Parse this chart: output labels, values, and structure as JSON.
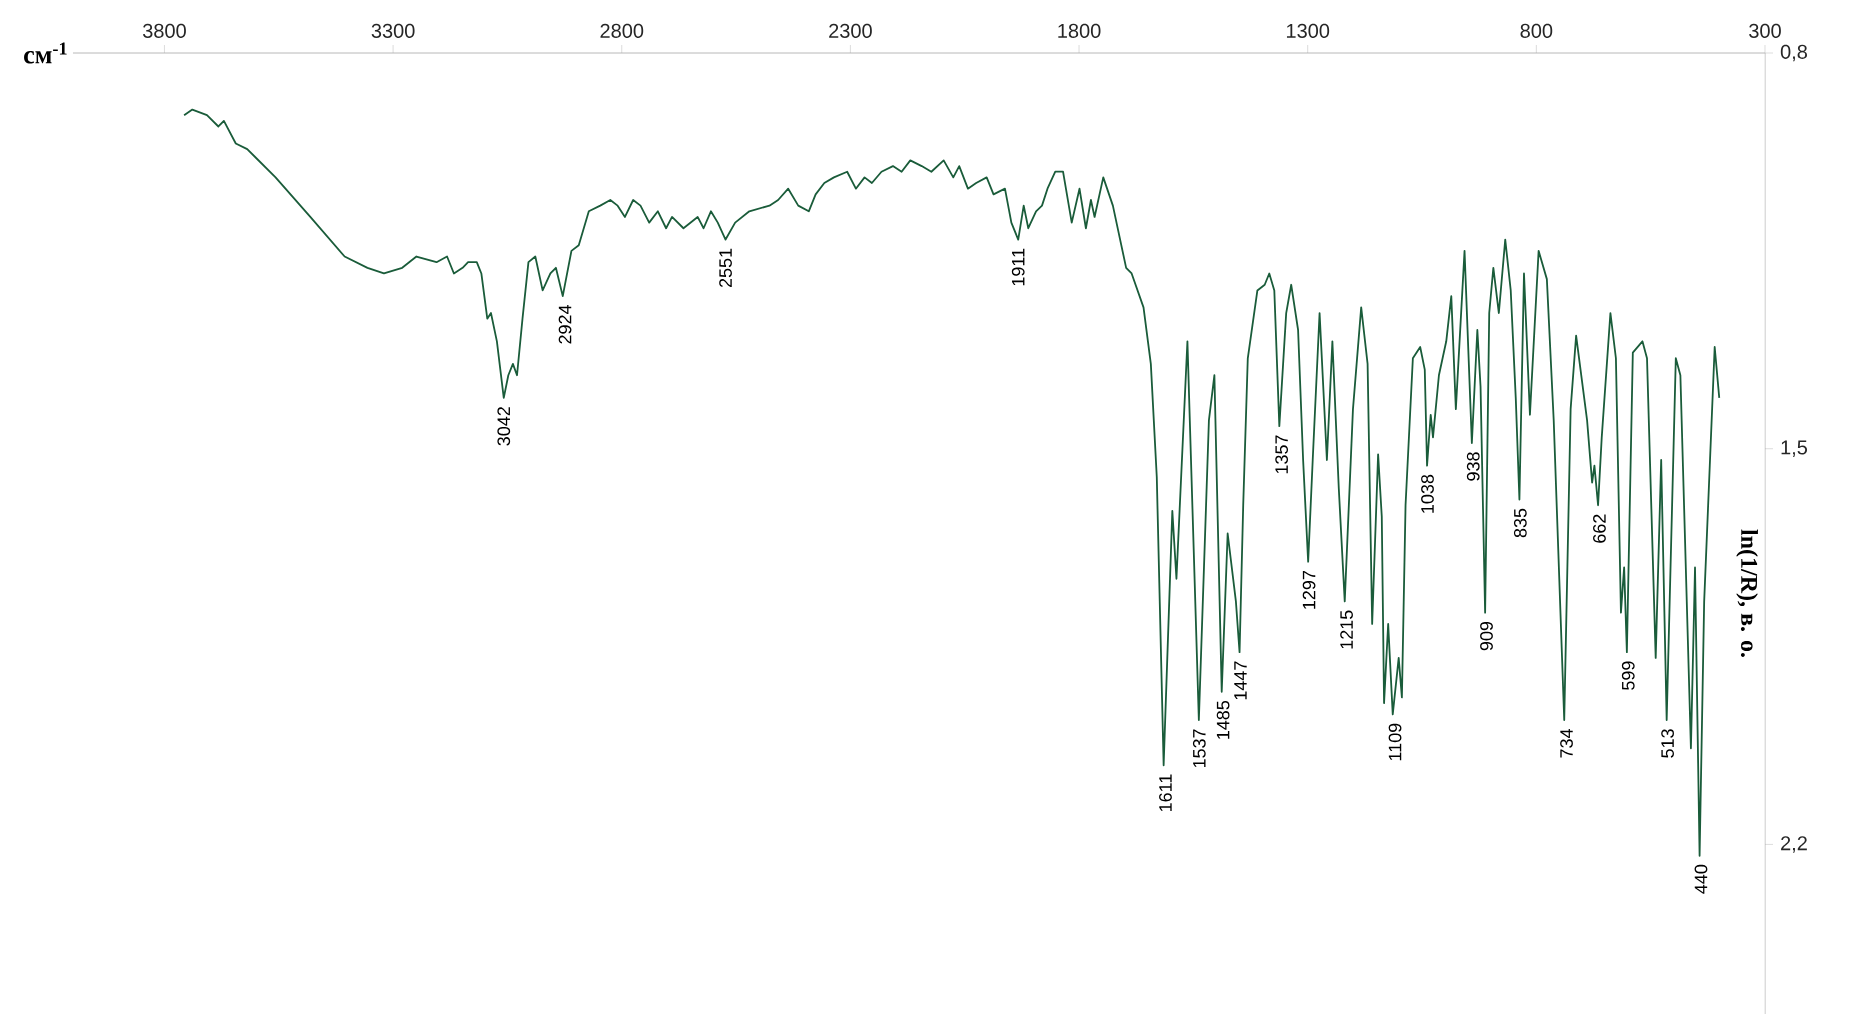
{
  "chart_data": {
    "type": "line",
    "color": "#1a5c3a",
    "xlabel": "см$^{-1}$",
    "ylabel": "ln(1/R), в. о.",
    "xlim": [
      4000,
      300
    ],
    "xticks": [
      3800,
      3300,
      2800,
      2300,
      1800,
      1300,
      800,
      300
    ],
    "ylim": [
      2.5,
      0.8
    ],
    "yticks": [
      {
        "value": 0.8,
        "label": "0,8"
      },
      {
        "value": 1.5,
        "label": "1,5"
      },
      {
        "value": 2.2,
        "label": "2,2"
      }
    ],
    "x": [
      3757,
      3739,
      3707,
      3682,
      3670,
      3644,
      3619,
      3557,
      3481,
      3406,
      3356,
      3320,
      3280,
      3249,
      3205,
      3182,
      3167,
      3148,
      3136,
      3117,
      3107,
      3094,
      3086,
      3073,
      3058,
      3048,
      3038,
      3029,
      3017,
      3004,
      2989,
      2973,
      2956,
      2944,
      2929,
      2910,
      2894,
      2872,
      2847,
      2825,
      2809,
      2793,
      2775,
      2759,
      2740,
      2721,
      2703,
      2690,
      2665,
      2634,
      2621,
      2605,
      2590,
      2573,
      2552,
      2521,
      2477,
      2458,
      2436,
      2414,
      2391,
      2376,
      2357,
      2336,
      2307,
      2288,
      2269,
      2253,
      2232,
      2207,
      2188,
      2169,
      2144,
      2123,
      2096,
      2075,
      2062,
      2043,
      2025,
      2002,
      1987,
      1962,
      1948,
      1933,
      1921,
      1911,
      1894,
      1881,
      1869,
      1852,
      1835,
      1816,
      1799,
      1785,
      1774,
      1766,
      1747,
      1726,
      1697,
      1685,
      1659,
      1643,
      1630,
      1615,
      1596,
      1587,
      1563,
      1538,
      1516,
      1504,
      1488,
      1475,
      1457,
      1449,
      1441,
      1431,
      1410,
      1394,
      1384,
      1373,
      1362,
      1347,
      1336,
      1321,
      1310,
      1299,
      1289,
      1274,
      1258,
      1246,
      1232,
      1219,
      1201,
      1183,
      1169,
      1159,
      1146,
      1138,
      1133,
      1124,
      1114,
      1101,
      1094,
      1086,
      1070,
      1054,
      1044,
      1039,
      1031,
      1026,
      1013,
      997,
      986,
      976,
      957,
      941,
      929,
      922,
      912,
      903,
      894,
      882,
      868,
      856,
      845,
      837,
      827,
      814,
      795,
      777,
      762,
      739,
      725,
      713,
      689,
      678,
      673,
      665,
      657,
      638,
      626,
      615,
      608,
      602,
      589,
      568,
      558,
      539,
      527,
      515,
      495,
      485,
      462,
      453,
      443,
      433,
      410,
      400
    ],
    "values": [
      0.91,
      0.9,
      0.91,
      0.93,
      0.92,
      0.96,
      0.97,
      1.02,
      1.09,
      1.16,
      1.18,
      1.19,
      1.18,
      1.16,
      1.17,
      1.16,
      1.19,
      1.18,
      1.17,
      1.17,
      1.19,
      1.27,
      1.26,
      1.31,
      1.41,
      1.37,
      1.35,
      1.37,
      1.27,
      1.17,
      1.16,
      1.22,
      1.19,
      1.18,
      1.23,
      1.15,
      1.14,
      1.08,
      1.07,
      1.06,
      1.07,
      1.09,
      1.06,
      1.07,
      1.1,
      1.08,
      1.11,
      1.09,
      1.11,
      1.09,
      1.11,
      1.08,
      1.1,
      1.13,
      1.1,
      1.08,
      1.07,
      1.06,
      1.04,
      1.07,
      1.08,
      1.05,
      1.03,
      1.02,
      1.01,
      1.04,
      1.02,
      1.03,
      1.01,
      1.0,
      1.01,
      0.99,
      1.0,
      1.01,
      0.99,
      1.02,
      1.0,
      1.04,
      1.03,
      1.02,
      1.05,
      1.04,
      1.1,
      1.13,
      1.07,
      1.11,
      1.08,
      1.07,
      1.04,
      1.01,
      1.01,
      1.1,
      1.04,
      1.11,
      1.06,
      1.09,
      1.02,
      1.07,
      1.18,
      1.19,
      1.25,
      1.35,
      1.55,
      2.06,
      1.61,
      1.73,
      1.31,
      1.98,
      1.45,
      1.37,
      1.93,
      1.65,
      1.77,
      1.86,
      1.6,
      1.34,
      1.22,
      1.21,
      1.19,
      1.22,
      1.46,
      1.26,
      1.21,
      1.29,
      1.52,
      1.7,
      1.52,
      1.26,
      1.52,
      1.31,
      1.57,
      1.77,
      1.43,
      1.25,
      1.35,
      1.81,
      1.51,
      1.62,
      1.95,
      1.81,
      1.97,
      1.87,
      1.94,
      1.6,
      1.34,
      1.32,
      1.36,
      1.53,
      1.44,
      1.48,
      1.37,
      1.31,
      1.23,
      1.43,
      1.15,
      1.49,
      1.29,
      1.39,
      1.79,
      1.26,
      1.18,
      1.26,
      1.13,
      1.22,
      1.41,
      1.59,
      1.19,
      1.44,
      1.15,
      1.2,
      1.45,
      1.98,
      1.43,
      1.3,
      1.45,
      1.56,
      1.53,
      1.6,
      1.48,
      1.26,
      1.34,
      1.79,
      1.71,
      1.86,
      1.33,
      1.31,
      1.34,
      1.87,
      1.52,
      1.98,
      1.34,
      1.37,
      2.03,
      1.71,
      2.22,
      1.77,
      1.32,
      1.41
    ],
    "annotations": [
      {
        "text": "3042",
        "x": 3058,
        "y": 1.41
      },
      {
        "text": "2924",
        "x": 2924,
        "y": 1.23
      },
      {
        "text": "2551",
        "x": 2573,
        "y": 1.13
      },
      {
        "text": "1911",
        "x": 1933,
        "y": 1.13
      },
      {
        "text": "1611",
        "x": 1611,
        "y": 2.06
      },
      {
        "text": "1537",
        "x": 1537,
        "y": 1.98
      },
      {
        "text": "1485",
        "x": 1485,
        "y": 1.93
      },
      {
        "text": "1447",
        "x": 1447,
        "y": 1.86
      },
      {
        "text": "1357",
        "x": 1357,
        "y": 1.46
      },
      {
        "text": "1297",
        "x": 1297,
        "y": 1.7
      },
      {
        "text": "1215",
        "x": 1215,
        "y": 1.77
      },
      {
        "text": "1109",
        "x": 1109,
        "y": 1.97
      },
      {
        "text": "1038",
        "x": 1038,
        "y": 1.53
      },
      {
        "text": "938",
        "x": 938,
        "y": 1.49
      },
      {
        "text": "909",
        "x": 909,
        "y": 1.79
      },
      {
        "text": "835",
        "x": 835,
        "y": 1.59
      },
      {
        "text": "734",
        "x": 734,
        "y": 1.98
      },
      {
        "text": "662",
        "x": 662,
        "y": 1.6
      },
      {
        "text": "599",
        "x": 599,
        "y": 1.86
      },
      {
        "text": "513",
        "x": 513,
        "y": 1.98
      },
      {
        "text": "440",
        "x": 440,
        "y": 2.22
      }
    ]
  }
}
